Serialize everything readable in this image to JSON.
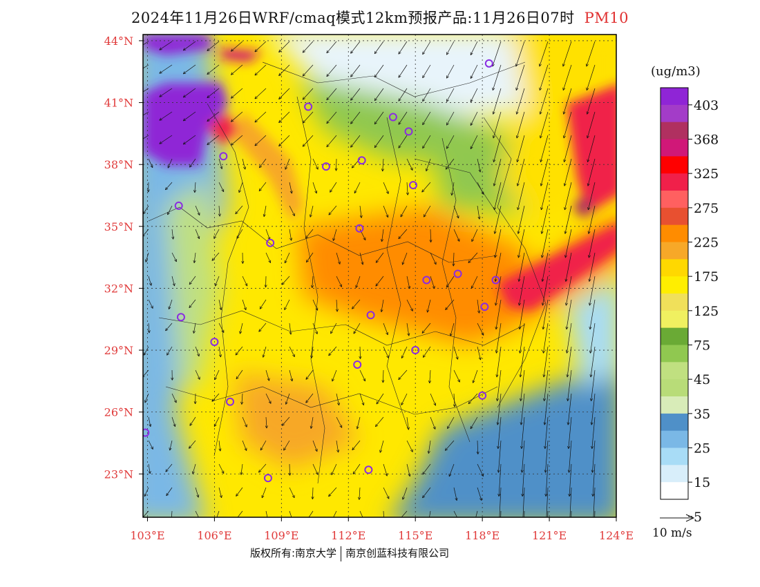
{
  "title": {
    "main": "2024年11月26日WRF/cmaq模式12km预报产品:11月26日07时",
    "pollutant": "PM10"
  },
  "colors": {
    "tick": "#e03a3a",
    "pollutant": "#e03030",
    "city_marker": "#8a2be2"
  },
  "chart_data": {
    "type": "heatmap",
    "description_units": "ug/m3",
    "x_ticks": [
      "103°E",
      "106°E",
      "109°E",
      "112°E",
      "115°E",
      "118°E",
      "121°E",
      "124°E"
    ],
    "x_values": [
      103,
      106,
      109,
      112,
      115,
      118,
      121,
      124
    ],
    "y_ticks": [
      "44°N",
      "41°N",
      "38°N",
      "35°N",
      "32°N",
      "29°N",
      "26°N",
      "23°N"
    ],
    "y_values": [
      44,
      41,
      38,
      35,
      32,
      29,
      26,
      23
    ],
    "lon_range": [
      102.8,
      124.0
    ],
    "lat_range": [
      20.9,
      44.3
    ],
    "legend": {
      "unit": "(ug/m3)",
      "labels": [
        "403",
        "368",
        "325",
        "275",
        "225",
        "175",
        "125",
        "75",
        "45",
        "35",
        "25",
        "15",
        "5"
      ],
      "colors": [
        "#8f25d6",
        "#a33cc8",
        "#b03060",
        "#d01878",
        "#ff0000",
        "#f0204a",
        "#ff6060",
        "#e85030",
        "#ff8c00",
        "#f7a828",
        "#ffd800",
        "#ffee00",
        "#f0e05a",
        "#f0f060",
        "#6aaa35",
        "#90c850",
        "#c0e080",
        "#b8dc78",
        "#d8ecb8",
        "#4f90c8",
        "#7ab8e6",
        "#a8dcf6",
        "#d8eefa",
        "#ffffff"
      ]
    },
    "wind_scale": {
      "speed": 10,
      "label": "10 m/s"
    },
    "stations": [
      {
        "lon": 118.3,
        "lat": 42.9
      },
      {
        "lon": 110.2,
        "lat": 40.8
      },
      {
        "lon": 114.0,
        "lat": 40.3
      },
      {
        "lon": 114.7,
        "lat": 39.6
      },
      {
        "lon": 106.4,
        "lat": 38.4
      },
      {
        "lon": 111.0,
        "lat": 37.9
      },
      {
        "lon": 112.6,
        "lat": 38.2
      },
      {
        "lon": 114.9,
        "lat": 37.0
      },
      {
        "lon": 104.4,
        "lat": 36.0
      },
      {
        "lon": 112.5,
        "lat": 34.9
      },
      {
        "lon": 108.5,
        "lat": 34.2
      },
      {
        "lon": 115.5,
        "lat": 32.4
      },
      {
        "lon": 116.9,
        "lat": 32.7
      },
      {
        "lon": 118.6,
        "lat": 32.4
      },
      {
        "lon": 118.1,
        "lat": 31.1
      },
      {
        "lon": 104.5,
        "lat": 30.6
      },
      {
        "lon": 113.0,
        "lat": 30.7
      },
      {
        "lon": 106.0,
        "lat": 29.4
      },
      {
        "lon": 115.0,
        "lat": 29.0
      },
      {
        "lon": 112.4,
        "lat": 28.3
      },
      {
        "lon": 106.7,
        "lat": 26.5
      },
      {
        "lon": 118.0,
        "lat": 26.8
      },
      {
        "lon": 102.9,
        "lat": 25.0
      },
      {
        "lon": 108.4,
        "lat": 22.8
      },
      {
        "lon": 112.9,
        "lat": 23.2
      }
    ]
  },
  "footer": {
    "left": "版权所有:南京大学",
    "right": "南京创蓝科技有限公司"
  }
}
